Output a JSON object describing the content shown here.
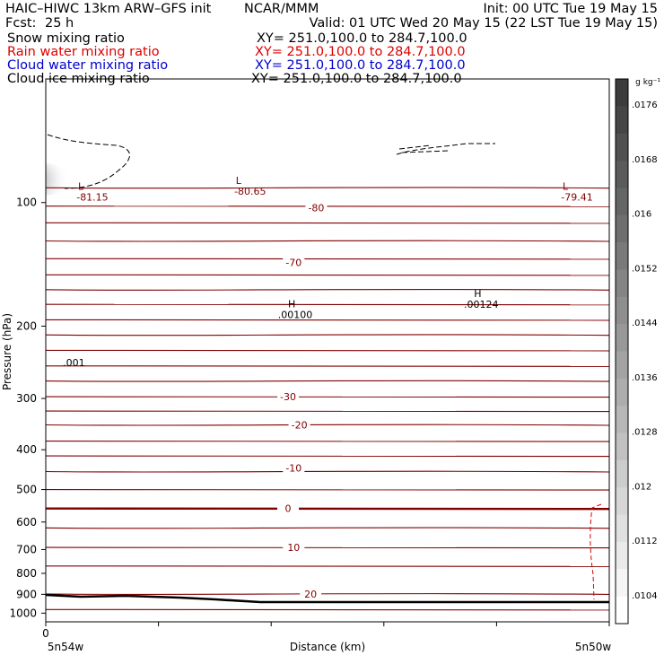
{
  "header": {
    "model": "HAIC–HIWC 13km ARW–GFS init",
    "center": "NCAR/MMM",
    "init": "Init: 00 UTC Tue 19 May 15",
    "fcst_label": "Fcst:",
    "fcst_value": "25 h",
    "valid": "Valid: 01 UTC Wed 20 May 15 (22 LST Tue 19 May 15)"
  },
  "fields": [
    {
      "label": "Snow mixing ratio",
      "xy": "XY= 251.0,100.0 to 284.7,100.0",
      "color": "#000000"
    },
    {
      "label": "Rain water mixing ratio",
      "xy": "XY= 251.0,100.0 to 284.7,100.0",
      "color": "#dd0000"
    },
    {
      "label": "Cloud water mixing ratio",
      "xy": "XY= 251.0,100.0 to 284.7,100.0",
      "color": "#0000cc"
    },
    {
      "label": "Cloud ice mixing ratio",
      "xy": "XY= 251.0,100.0 to 284.7,100.0",
      "color": "#000000"
    }
  ],
  "chart_data": {
    "type": "cross-section",
    "xlabel": "Distance (km)",
    "ylabel": "Pressure (hPa)",
    "ylim": [
      1050,
      50
    ],
    "ylog": true,
    "x_tick_labels": [
      "0"
    ],
    "x_end_labels": [
      "5n54w",
      "5n50w"
    ],
    "y_ticks": [
      100,
      200,
      300,
      400,
      500,
      600,
      700,
      800,
      900,
      1000
    ],
    "temperature_contour_labels": [
      {
        "text": "-70",
        "p": 140,
        "x": 0.44
      },
      {
        "text": "-30",
        "p": 297,
        "x": 0.43
      },
      {
        "text": "-20",
        "p": 348,
        "x": 0.45
      },
      {
        "text": "-10",
        "p": 443,
        "x": 0.44
      },
      {
        "text": "0",
        "p": 556,
        "x": 0.43
      },
      {
        "text": "10",
        "p": 692,
        "x": 0.44
      },
      {
        "text": "20",
        "p": 898,
        "x": 0.47
      },
      {
        "text": "-80",
        "p": 103,
        "x": 0.48
      }
    ],
    "extrema": [
      {
        "mark": "L",
        "value": "-81.15",
        "p": 93,
        "x": 0.07,
        "color": "#800000"
      },
      {
        "mark": "L",
        "value": "-80.65",
        "p": 90,
        "x": 0.35,
        "color": "#800000"
      },
      {
        "mark": "L",
        "value": "-79.41",
        "p": 93,
        "x": 0.93,
        "color": "#800000"
      },
      {
        "mark": "H",
        "value": ".00100",
        "p": 180,
        "x": 0.43,
        "color": "#000000"
      },
      {
        "mark": "H",
        "value": ".00124",
        "p": 170,
        "x": 0.76,
        "color": "#000000"
      }
    ],
    "snow_label": {
      "text": ".001",
      "p": 245,
      "x": 0.05
    },
    "colorbar": {
      "units": "g kg⁻¹",
      "labels": [
        ".0104",
        ".0112",
        ".012",
        ".0128",
        ".0136",
        ".0144",
        ".0152",
        ".016",
        ".0168",
        ".0176"
      ]
    },
    "colors": {
      "temperature": "#800000",
      "frame": "#000000",
      "rain": "#dd0000"
    }
  }
}
